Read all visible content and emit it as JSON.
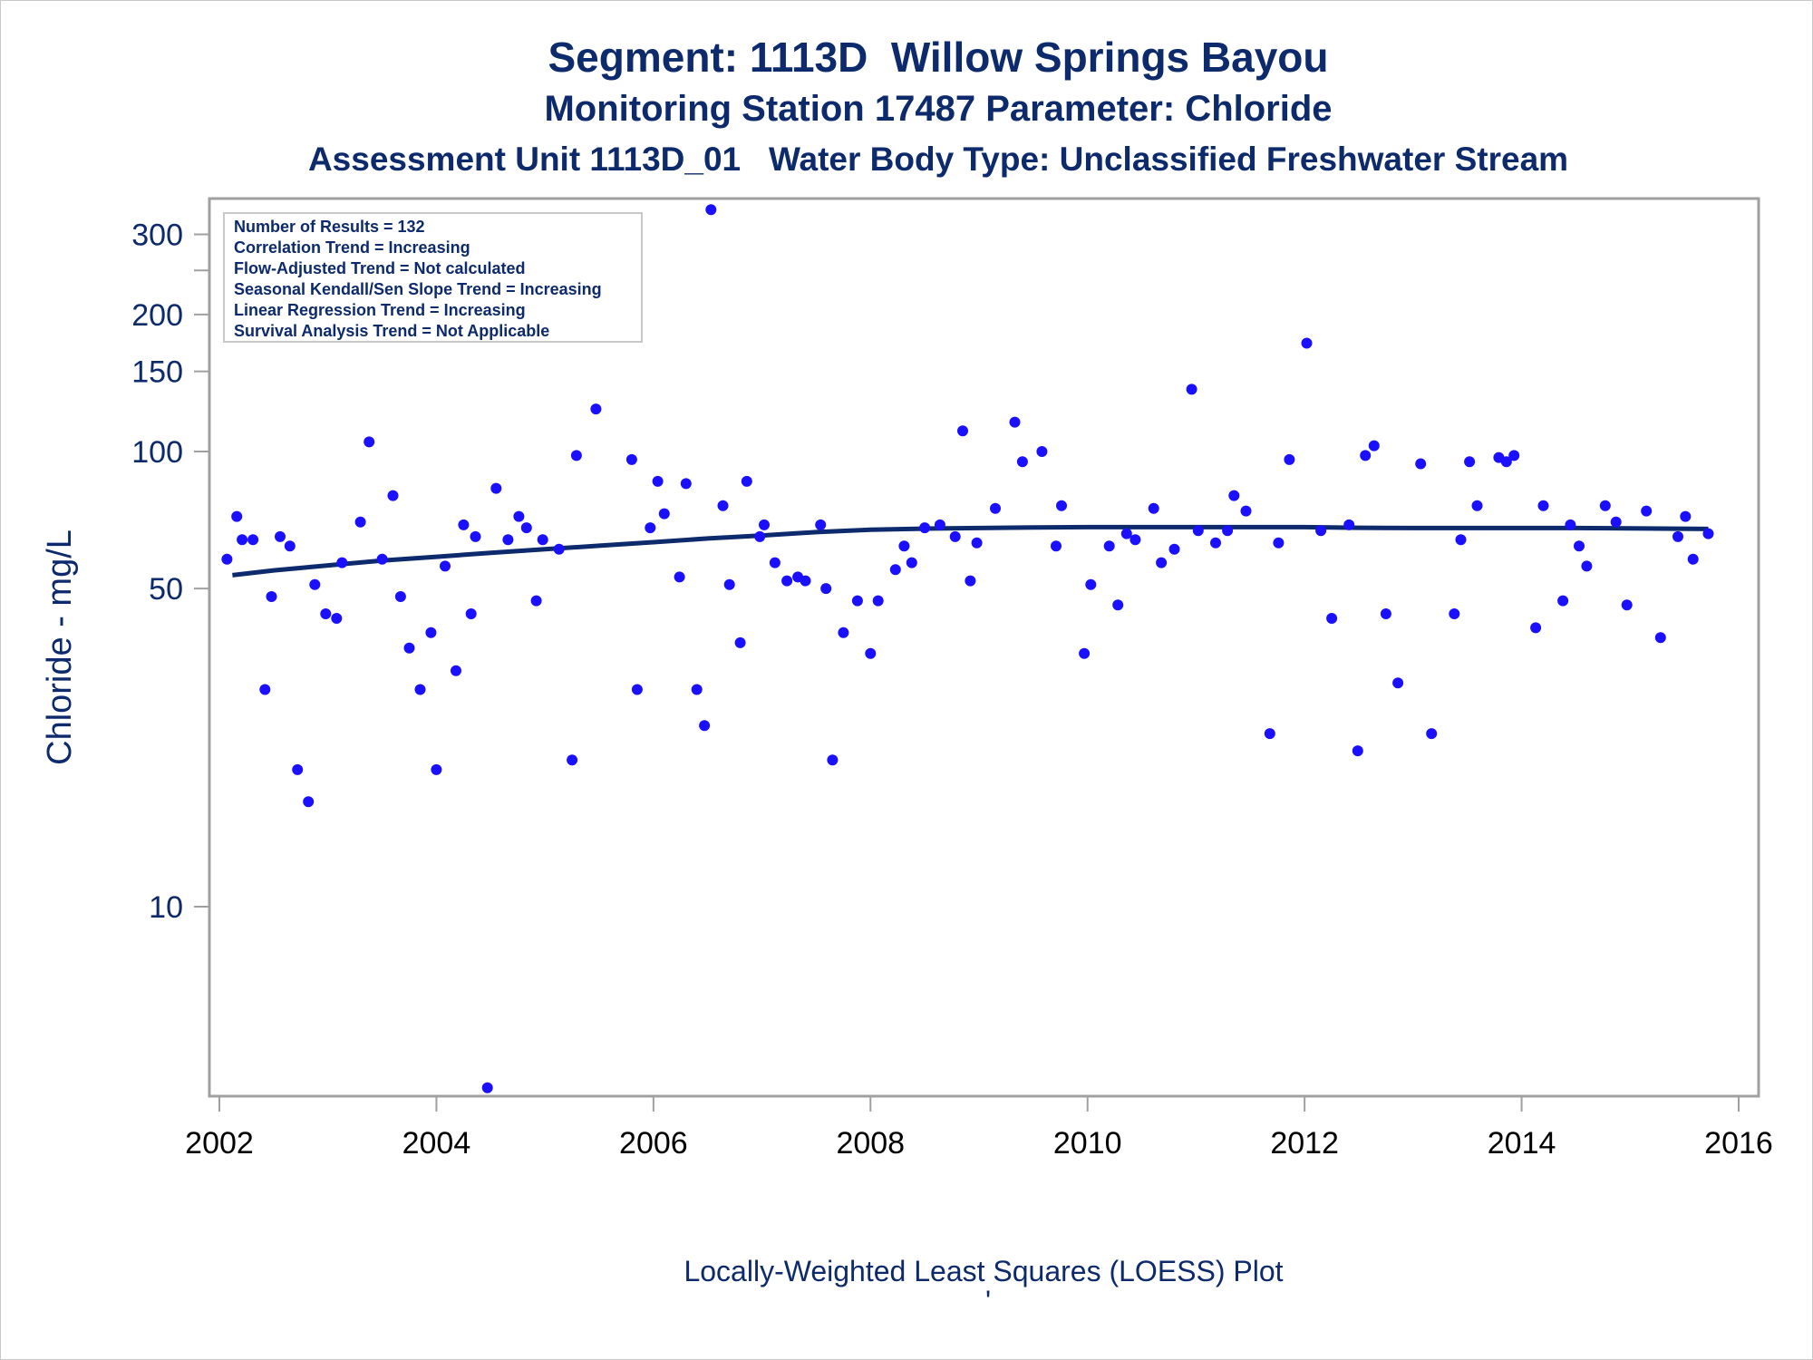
{
  "titles": {
    "line1": "Segment: 1113D  Willow Springs Bayou",
    "line2": "Monitoring Station 17487 Parameter: Chloride",
    "line3": "Assessment Unit 1113D_01   Water Body Type: Unclassified Freshwater Stream"
  },
  "footnote": "Locally-Weighted Least Squares (LOESS) Plot",
  "footnote_mark": "'",
  "colors": {
    "text": "#0d2a6c",
    "points": "#1a10ff",
    "loess": "#0d2a6c",
    "frame": "#a0a0a0"
  },
  "chart_data": {
    "type": "scatter",
    "title": "Segment: 1113D  Willow Springs Bayou",
    "ylabel": "Chloride - mg/L",
    "xlabel": "",
    "y_scale": "log",
    "xlim": [
      2001.9,
      2016.2
    ],
    "ylim": [
      4,
      360
    ],
    "x_ticks": [
      2002,
      2004,
      2006,
      2008,
      2010,
      2012,
      2014,
      2016
    ],
    "x_tick_labels": [
      "2002",
      "2004",
      "2006",
      "2008",
      "2010",
      "2012",
      "2014",
      "2016"
    ],
    "y_ticks": [
      10,
      50,
      100,
      150,
      200,
      250,
      300
    ],
    "y_tick_labels": [
      "10",
      "50",
      "100",
      "150",
      "200",
      "",
      "300"
    ],
    "grid": false,
    "legend_box": {
      "placement": "top-left",
      "lines": [
        "Number of Results = 132",
        "Correlation Trend = Increasing",
        "Flow-Adjusted Trend = Not calculated",
        "Seasonal Kendall/Sen Slope Trend = Increasing",
        "Linear Regression Trend = Increasing",
        "Survival Analysis Trend = Not Applicable"
      ]
    },
    "series": [
      {
        "type": "scatter",
        "points": [
          [
            2002.07,
            58
          ],
          [
            2002.16,
            72
          ],
          [
            2002.21,
            64
          ],
          [
            2002.31,
            64
          ],
          [
            2002.42,
            30
          ],
          [
            2002.48,
            48
          ],
          [
            2002.56,
            65
          ],
          [
            2002.65,
            62
          ],
          [
            2002.72,
            20
          ],
          [
            2002.82,
            17
          ],
          [
            2002.88,
            51
          ],
          [
            2002.98,
            44
          ],
          [
            2003.08,
            43
          ],
          [
            2003.13,
            57
          ],
          [
            2003.3,
            70
          ],
          [
            2003.38,
            105
          ],
          [
            2003.5,
            58
          ],
          [
            2003.6,
            80
          ],
          [
            2003.67,
            48
          ],
          [
            2003.75,
            37
          ],
          [
            2003.85,
            30
          ],
          [
            2003.95,
            40
          ],
          [
            2004.0,
            20
          ],
          [
            2004.08,
            56
          ],
          [
            2004.18,
            33
          ],
          [
            2004.25,
            69
          ],
          [
            2004.32,
            44
          ],
          [
            2004.36,
            65
          ],
          [
            2004.47,
            4
          ],
          [
            2004.55,
            83
          ],
          [
            2004.66,
            64
          ],
          [
            2004.76,
            72
          ],
          [
            2004.83,
            68
          ],
          [
            2004.92,
            47
          ],
          [
            2004.98,
            64
          ],
          [
            2005.13,
            61
          ],
          [
            2005.25,
            21
          ],
          [
            2005.29,
            98
          ],
          [
            2005.47,
            124
          ],
          [
            2005.8,
            96
          ],
          [
            2005.85,
            30
          ],
          [
            2005.97,
            68
          ],
          [
            2006.04,
            86
          ],
          [
            2006.1,
            73
          ],
          [
            2006.24,
            53
          ],
          [
            2006.3,
            85
          ],
          [
            2006.4,
            30
          ],
          [
            2006.47,
            25
          ],
          [
            2006.53,
            340
          ],
          [
            2006.64,
            76
          ],
          [
            2006.7,
            51
          ],
          [
            2006.8,
            38
          ],
          [
            2006.86,
            86
          ],
          [
            2006.98,
            65
          ],
          [
            2007.02,
            69
          ],
          [
            2007.12,
            57
          ],
          [
            2007.23,
            52
          ],
          [
            2007.33,
            53
          ],
          [
            2007.4,
            52
          ],
          [
            2007.54,
            69
          ],
          [
            2007.59,
            50
          ],
          [
            2007.65,
            21
          ],
          [
            2007.75,
            40
          ],
          [
            2007.88,
            47
          ],
          [
            2008.0,
            36
          ],
          [
            2008.07,
            47
          ],
          [
            2008.23,
            55
          ],
          [
            2008.31,
            62
          ],
          [
            2008.38,
            57
          ],
          [
            2008.5,
            68
          ],
          [
            2008.64,
            69
          ],
          [
            2008.78,
            65
          ],
          [
            2008.85,
            111
          ],
          [
            2008.92,
            52
          ],
          [
            2008.98,
            63
          ],
          [
            2009.15,
            75
          ],
          [
            2009.33,
            116
          ],
          [
            2009.4,
            95
          ],
          [
            2009.58,
            100
          ],
          [
            2009.71,
            62
          ],
          [
            2009.76,
            76
          ],
          [
            2009.97,
            36
          ],
          [
            2010.03,
            51
          ],
          [
            2010.2,
            62
          ],
          [
            2010.28,
            46
          ],
          [
            2010.36,
            66
          ],
          [
            2010.44,
            64
          ],
          [
            2010.61,
            75
          ],
          [
            2010.68,
            57
          ],
          [
            2010.8,
            61
          ],
          [
            2010.96,
            137
          ],
          [
            2011.02,
            67
          ],
          [
            2011.18,
            63
          ],
          [
            2011.29,
            67
          ],
          [
            2011.35,
            80
          ],
          [
            2011.46,
            74
          ],
          [
            2011.68,
            24
          ],
          [
            2011.76,
            63
          ],
          [
            2011.86,
            96
          ],
          [
            2012.02,
            173
          ],
          [
            2012.15,
            67
          ],
          [
            2012.25,
            43
          ],
          [
            2012.41,
            69
          ],
          [
            2012.49,
            22
          ],
          [
            2012.56,
            98
          ],
          [
            2012.64,
            103
          ],
          [
            2012.75,
            44
          ],
          [
            2012.86,
            31
          ],
          [
            2013.07,
            94
          ],
          [
            2013.17,
            24
          ],
          [
            2013.38,
            44
          ],
          [
            2013.44,
            64
          ],
          [
            2013.52,
            95
          ],
          [
            2013.59,
            76
          ],
          [
            2013.79,
            97
          ],
          [
            2013.86,
            95
          ],
          [
            2013.93,
            98
          ],
          [
            2014.13,
            41
          ],
          [
            2014.2,
            76
          ],
          [
            2014.38,
            47
          ],
          [
            2014.45,
            69
          ],
          [
            2014.53,
            62
          ],
          [
            2014.6,
            56
          ],
          [
            2014.77,
            76
          ],
          [
            2014.87,
            70
          ],
          [
            2014.97,
            46
          ],
          [
            2015.15,
            74
          ],
          [
            2015.28,
            39
          ],
          [
            2015.44,
            65
          ],
          [
            2015.51,
            72
          ],
          [
            2015.58,
            58
          ],
          [
            2015.72,
            66
          ]
        ]
      },
      {
        "type": "line",
        "points": [
          [
            2002.12,
            53.5
          ],
          [
            2002.5,
            54.8
          ],
          [
            2003.0,
            56.2
          ],
          [
            2003.5,
            57.6
          ],
          [
            2004.0,
            58.7
          ],
          [
            2004.5,
            59.9
          ],
          [
            2005.0,
            61.0
          ],
          [
            2005.5,
            62.1
          ],
          [
            2006.0,
            63.2
          ],
          [
            2006.5,
            64.4
          ],
          [
            2007.0,
            65.4
          ],
          [
            2007.5,
            66.5
          ],
          [
            2008.0,
            67.3
          ],
          [
            2008.5,
            67.7
          ],
          [
            2009.0,
            67.9
          ],
          [
            2009.5,
            68.1
          ],
          [
            2010.0,
            68.2
          ],
          [
            2010.5,
            68.2
          ],
          [
            2011.0,
            68.2
          ],
          [
            2011.5,
            68.2
          ],
          [
            2012.0,
            68.2
          ],
          [
            2012.5,
            68.0
          ],
          [
            2013.0,
            67.9
          ],
          [
            2013.5,
            67.9
          ],
          [
            2014.0,
            67.9
          ],
          [
            2014.5,
            67.9
          ],
          [
            2015.0,
            67.8
          ],
          [
            2015.72,
            67.6
          ]
        ]
      }
    ]
  }
}
